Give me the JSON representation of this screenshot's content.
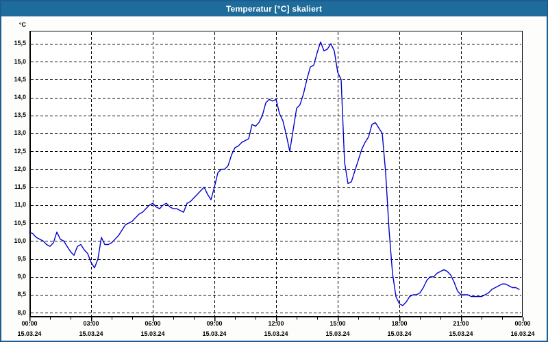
{
  "window": {
    "title": "Temperatur [°C] skaliert"
  },
  "colors": {
    "titlebar": "#1e6c9b",
    "window_border": "#1c5c8f",
    "content_bg": "#fdfefc",
    "plot_bg": "#ffffff",
    "grid": "#000000",
    "line": "#0000cc",
    "label": "#000000"
  },
  "chart_data": {
    "type": "line",
    "title": "Temperatur [°C] skaliert",
    "ylabel": "°C",
    "xlabel": "",
    "grid": "dashed",
    "legend": "none",
    "ylim": [
      7.87,
      15.86
    ],
    "xlim_hours": [
      0,
      24
    ],
    "y_ticks": [
      8.0,
      8.5,
      9.0,
      9.5,
      10.0,
      10.5,
      11.0,
      11.5,
      12.0,
      12.5,
      13.0,
      13.5,
      14.0,
      14.5,
      15.0,
      15.5
    ],
    "y_tick_labels": [
      "8,0",
      "8,5",
      "9,0",
      "9,5",
      "10,0",
      "10,5",
      "11,0",
      "11,5",
      "12,0",
      "12,5",
      "13,0",
      "13,5",
      "14,0",
      "14,5",
      "15,0",
      "15,5"
    ],
    "x_major_ticks": [
      {
        "hour": 0,
        "time": "00:00",
        "date": "15.03.24"
      },
      {
        "hour": 3,
        "time": "03:00",
        "date": "15.03.24"
      },
      {
        "hour": 6,
        "time": "06:00",
        "date": "15.03.24"
      },
      {
        "hour": 9,
        "time": "09:00",
        "date": "15.03.24"
      },
      {
        "hour": 12,
        "time": "12:00",
        "date": "15.03.24"
      },
      {
        "hour": 15,
        "time": "15:00",
        "date": "15.03.24"
      },
      {
        "hour": 18,
        "time": "18:00",
        "date": "15.03.24"
      },
      {
        "hour": 21,
        "time": "21:00",
        "date": "15.03.24"
      },
      {
        "hour": 24,
        "time": "00:00",
        "date": "16.03.24"
      }
    ],
    "x_minor_step_hours": 1,
    "x_vertical_grid_hours": [
      3,
      6,
      9,
      12,
      15,
      18,
      21
    ],
    "series": [
      {
        "name": "Temperatur",
        "color": "#0000cc",
        "points": [
          [
            "00:00",
            10.25
          ],
          [
            "00:10",
            10.2
          ],
          [
            "00:20",
            10.1
          ],
          [
            "00:30",
            10.05
          ],
          [
            "00:40",
            10.0
          ],
          [
            "00:50",
            9.9
          ],
          [
            "01:00",
            9.85
          ],
          [
            "01:10",
            9.95
          ],
          [
            "01:20",
            10.25
          ],
          [
            "01:30",
            10.05
          ],
          [
            "01:40",
            10.0
          ],
          [
            "01:50",
            9.85
          ],
          [
            "02:00",
            9.7
          ],
          [
            "02:10",
            9.6
          ],
          [
            "02:20",
            9.85
          ],
          [
            "02:30",
            9.9
          ],
          [
            "02:40",
            9.75
          ],
          [
            "02:50",
            9.65
          ],
          [
            "03:00",
            9.4
          ],
          [
            "03:10",
            9.25
          ],
          [
            "03:20",
            9.5
          ],
          [
            "03:30",
            10.1
          ],
          [
            "03:40",
            9.9
          ],
          [
            "03:50",
            9.9
          ],
          [
            "04:00",
            9.95
          ],
          [
            "04:10",
            10.05
          ],
          [
            "04:20",
            10.15
          ],
          [
            "04:30",
            10.3
          ],
          [
            "04:40",
            10.45
          ],
          [
            "04:50",
            10.5
          ],
          [
            "05:00",
            10.55
          ],
          [
            "05:10",
            10.65
          ],
          [
            "05:20",
            10.75
          ],
          [
            "05:30",
            10.8
          ],
          [
            "05:40",
            10.9
          ],
          [
            "05:50",
            11.0
          ],
          [
            "06:00",
            11.05
          ],
          [
            "06:10",
            10.95
          ],
          [
            "06:20",
            10.9
          ],
          [
            "06:30",
            11.0
          ],
          [
            "06:40",
            11.05
          ],
          [
            "06:50",
            10.95
          ],
          [
            "07:00",
            10.9
          ],
          [
            "07:10",
            10.9
          ],
          [
            "07:20",
            10.85
          ],
          [
            "07:30",
            10.8
          ],
          [
            "07:40",
            11.05
          ],
          [
            "07:50",
            11.1
          ],
          [
            "08:00",
            11.2
          ],
          [
            "08:10",
            11.3
          ],
          [
            "08:20",
            11.4
          ],
          [
            "08:30",
            11.5
          ],
          [
            "08:40",
            11.3
          ],
          [
            "08:50",
            11.15
          ],
          [
            "09:00",
            11.5
          ],
          [
            "09:10",
            11.9
          ],
          [
            "09:20",
            12.0
          ],
          [
            "09:30",
            12.0
          ],
          [
            "09:40",
            12.1
          ],
          [
            "09:50",
            12.4
          ],
          [
            "10:00",
            12.6
          ],
          [
            "10:10",
            12.65
          ],
          [
            "10:20",
            12.75
          ],
          [
            "10:30",
            12.8
          ],
          [
            "10:40",
            12.85
          ],
          [
            "10:50",
            13.25
          ],
          [
            "11:00",
            13.2
          ],
          [
            "11:10",
            13.3
          ],
          [
            "11:20",
            13.5
          ],
          [
            "11:30",
            13.85
          ],
          [
            "11:40",
            13.95
          ],
          [
            "11:50",
            13.9
          ],
          [
            "12:00",
            13.95
          ],
          [
            "12:10",
            13.55
          ],
          [
            "12:20",
            13.35
          ],
          [
            "12:30",
            12.95
          ],
          [
            "12:40",
            12.5
          ],
          [
            "12:50",
            13.1
          ],
          [
            "13:00",
            13.7
          ],
          [
            "13:10",
            13.8
          ],
          [
            "13:20",
            14.1
          ],
          [
            "13:30",
            14.5
          ],
          [
            "13:40",
            14.85
          ],
          [
            "13:50",
            14.9
          ],
          [
            "14:00",
            15.25
          ],
          [
            "14:10",
            15.55
          ],
          [
            "14:20",
            15.3
          ],
          [
            "14:30",
            15.35
          ],
          [
            "14:40",
            15.5
          ],
          [
            "14:50",
            15.3
          ],
          [
            "15:00",
            14.7
          ],
          [
            "15:10",
            14.5
          ],
          [
            "15:20",
            12.2
          ],
          [
            "15:30",
            11.6
          ],
          [
            "15:40",
            11.65
          ],
          [
            "15:50",
            11.95
          ],
          [
            "16:00",
            12.25
          ],
          [
            "16:10",
            12.55
          ],
          [
            "16:20",
            12.75
          ],
          [
            "16:30",
            12.9
          ],
          [
            "16:40",
            13.25
          ],
          [
            "16:50",
            13.3
          ],
          [
            "17:00",
            13.15
          ],
          [
            "17:10",
            13.0
          ],
          [
            "17:20",
            11.9
          ],
          [
            "17:30",
            10.3
          ],
          [
            "17:40",
            9.1
          ],
          [
            "17:50",
            8.45
          ],
          [
            "18:00",
            8.25
          ],
          [
            "18:10",
            8.2
          ],
          [
            "18:20",
            8.3
          ],
          [
            "18:30",
            8.45
          ],
          [
            "18:40",
            8.5
          ],
          [
            "18:50",
            8.5
          ],
          [
            "19:00",
            8.55
          ],
          [
            "19:10",
            8.7
          ],
          [
            "19:20",
            8.9
          ],
          [
            "19:30",
            9.0
          ],
          [
            "19:40",
            9.0
          ],
          [
            "19:50",
            9.1
          ],
          [
            "20:00",
            9.15
          ],
          [
            "20:10",
            9.2
          ],
          [
            "20:20",
            9.15
          ],
          [
            "20:30",
            9.05
          ],
          [
            "20:40",
            8.85
          ],
          [
            "20:50",
            8.6
          ],
          [
            "21:00",
            8.5
          ],
          [
            "21:10",
            8.5
          ],
          [
            "21:20",
            8.5
          ],
          [
            "21:30",
            8.45
          ],
          [
            "21:40",
            8.45
          ],
          [
            "21:50",
            8.45
          ],
          [
            "22:00",
            8.45
          ],
          [
            "22:10",
            8.5
          ],
          [
            "22:20",
            8.55
          ],
          [
            "22:30",
            8.65
          ],
          [
            "22:40",
            8.7
          ],
          [
            "22:50",
            8.75
          ],
          [
            "23:00",
            8.8
          ],
          [
            "23:10",
            8.8
          ],
          [
            "23:20",
            8.75
          ],
          [
            "23:30",
            8.7
          ],
          [
            "23:40",
            8.7
          ],
          [
            "23:50",
            8.65
          ]
        ]
      }
    ]
  }
}
